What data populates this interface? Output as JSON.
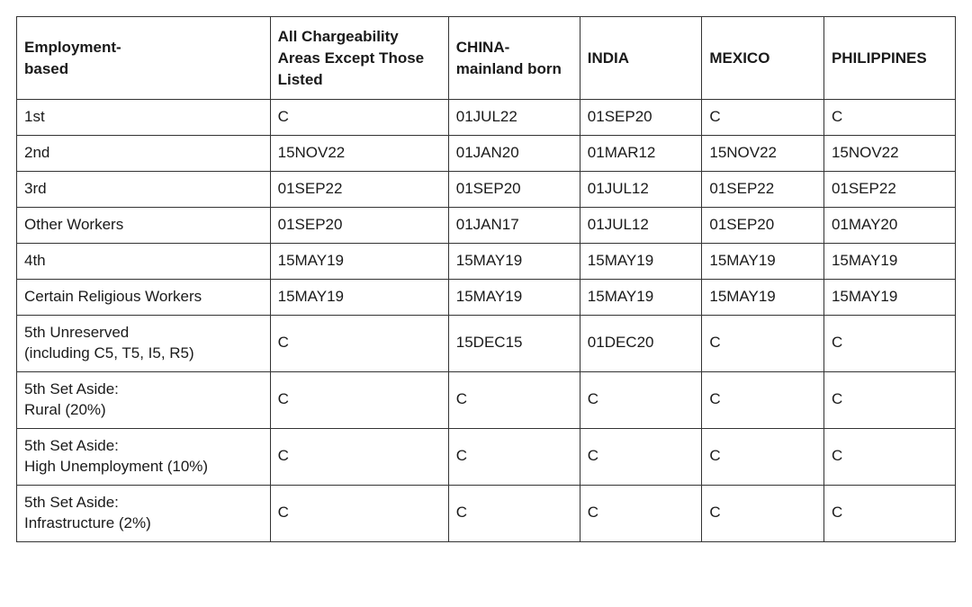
{
  "table": {
    "columns": [
      "Employment-\nbased",
      "All Chargeability Areas Except Those Listed",
      "CHINA-mainland born",
      "INDIA",
      "MEXICO",
      "PHILIPPINES"
    ],
    "rows": [
      {
        "category": "1st",
        "cells": [
          "C",
          "01JUL22",
          "01SEP20",
          "C",
          "C"
        ]
      },
      {
        "category": "2nd",
        "cells": [
          "15NOV22",
          "01JAN20",
          "01MAR12",
          "15NOV22",
          "15NOV22"
        ]
      },
      {
        "category": "3rd",
        "cells": [
          "01SEP22",
          "01SEP20",
          "01JUL12",
          "01SEP22",
          "01SEP22"
        ]
      },
      {
        "category": "Other Workers",
        "cells": [
          "01SEP20",
          "01JAN17",
          "01JUL12",
          "01SEP20",
          "01MAY20"
        ]
      },
      {
        "category": "4th",
        "cells": [
          "15MAY19",
          "15MAY19",
          "15MAY19",
          "15MAY19",
          "15MAY19"
        ]
      },
      {
        "category": "Certain Religious Workers",
        "cells": [
          "15MAY19",
          "15MAY19",
          "15MAY19",
          "15MAY19",
          "15MAY19"
        ]
      },
      {
        "category": "5th Unreserved\n(including C5, T5, I5, R5)",
        "cells": [
          "C",
          "15DEC15",
          "01DEC20",
          "C",
          "C"
        ]
      },
      {
        "category": "5th Set Aside:\nRural (20%)",
        "cells": [
          "C",
          "C",
          "C",
          "C",
          "C"
        ]
      },
      {
        "category": "5th Set Aside:\nHigh Unemployment (10%)",
        "cells": [
          "C",
          "C",
          "C",
          "C",
          "C"
        ]
      },
      {
        "category": "5th Set Aside:\nInfrastructure (2%)",
        "cells": [
          "C",
          "C",
          "C",
          "C",
          "C"
        ]
      }
    ],
    "colors": {
      "border": "#333333",
      "text": "#1a1a1a",
      "background": "#ffffff"
    },
    "typography": {
      "font_family": "Arial, Helvetica, sans-serif",
      "cell_fontsize": 17,
      "header_fontweight": "bold"
    },
    "column_widths_pct": [
      27,
      19,
      14,
      13,
      13,
      14
    ]
  }
}
